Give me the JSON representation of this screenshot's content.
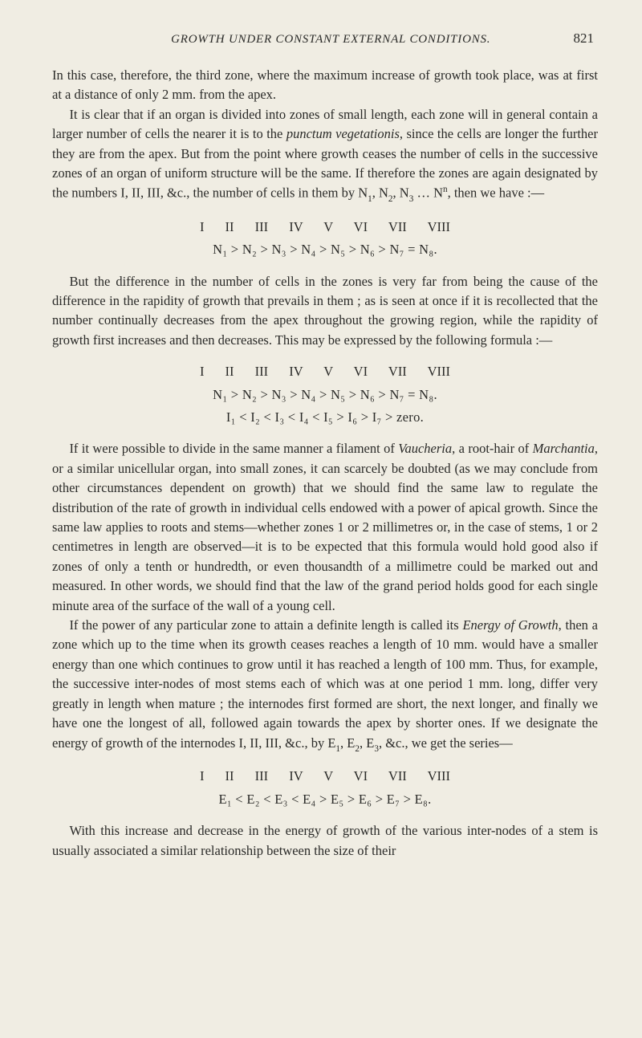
{
  "page": {
    "running_title": "GROWTH UNDER CONSTANT EXTERNAL CONDITIONS.",
    "page_number": "821"
  },
  "paragraphs": {
    "p1": "In this case, therefore, the third zone, where the maximum increase of growth took place, was at first at a distance of only 2 mm. from the apex.",
    "p2_a": "It is clear that if an organ is divided into zones of small length, each zone will in general contain a larger number of cells the nearer it is to the ",
    "p2_i1": "punctum vegetationis",
    "p2_b": ", since the cells are longer the further they are from the apex. But from the point where growth ceases the number of cells in the successive zones of an organ of uniform structure will be the same. If therefore the zones are again designated by the numbers I, II, III, &c., the number of cells in them by N",
    "p2_c": ", N",
    "p2_d": ", N",
    "p2_e": " … N",
    "p2_f": ", then we have :—",
    "p3": "But the difference in the number of cells in the zones is very far from being the cause of the difference in the rapidity of growth that prevails in them ; as is seen at once if it is recollected that the number continually decreases from the apex throughout the growing region, while the rapidity of growth first increases and then decreases. This may be expressed by the following formula :—",
    "p4_a": "If it were possible to divide in the same manner a filament of ",
    "p4_i1": "Vaucheria",
    "p4_b": ", a root-hair of ",
    "p4_i2": "Marchantia",
    "p4_c": ", or a similar unicellular organ, into small zones, it can scarcely be doubted (as we may conclude from other circumstances dependent on growth) that we should find the same law to regulate the distribution of the rate of growth in individual cells endowed with a power of apical growth. Since the same law applies to roots and stems—whether zones 1 or 2 millimetres or, in the case of stems, 1 or 2 centimetres in length are observed—it is to be expected that this formula would hold good also if zones of only a tenth or hundredth, or even thousandth of a millimetre could be marked out and measured. In other words, we should find that the law of the grand period holds good for each single minute area of the surface of the wall of a young cell.",
    "p5_a": "If the power of any particular zone to attain a definite length is called its ",
    "p5_i1": "Energy of Growth",
    "p5_b": ", then a zone which up to the time when its growth ceases reaches a length of 10 mm. would have a smaller energy than one which continues to grow until it has reached a length of 100 mm. Thus, for example, the successive inter-nodes of most stems each of which was at one period 1 mm. long, differ very greatly in length when mature ; the internodes first formed are short, the next longer, and finally we have one the longest of all, followed again towards the apex by shorter ones. If we designate the energy of growth of the internodes I, II, III, &c., by E",
    "p5_c": ", E",
    "p5_d": ", E",
    "p5_e": ", &c., we get the series—",
    "p6": "With this increase and decrease in the energy of growth of the various inter-nodes of a stem is usually associated a similar relationship between the size of their"
  },
  "formulas": {
    "roman_8": "I II III IV V VI VII VIII",
    "f1": "N₁ > N₂ > N₃ > N₄ > N₅ > N₆ > N₇ = N₈.",
    "f2a": "N₁ > N₂ > N₃ > N₄ > N₅ > N₆ > N₇ = N₈.",
    "f2b": "I₁  <  I₂  <  I₃  <  I₄  <  I₅  >  I₆  >  I₇  >  zero.",
    "f3": "E₁ < E₂ < E₃ < E₄ > E₅ > E₆ > E₇ > E₈."
  },
  "subs": {
    "s1": "1",
    "s2": "2",
    "s3": "3",
    "sn": "n"
  }
}
